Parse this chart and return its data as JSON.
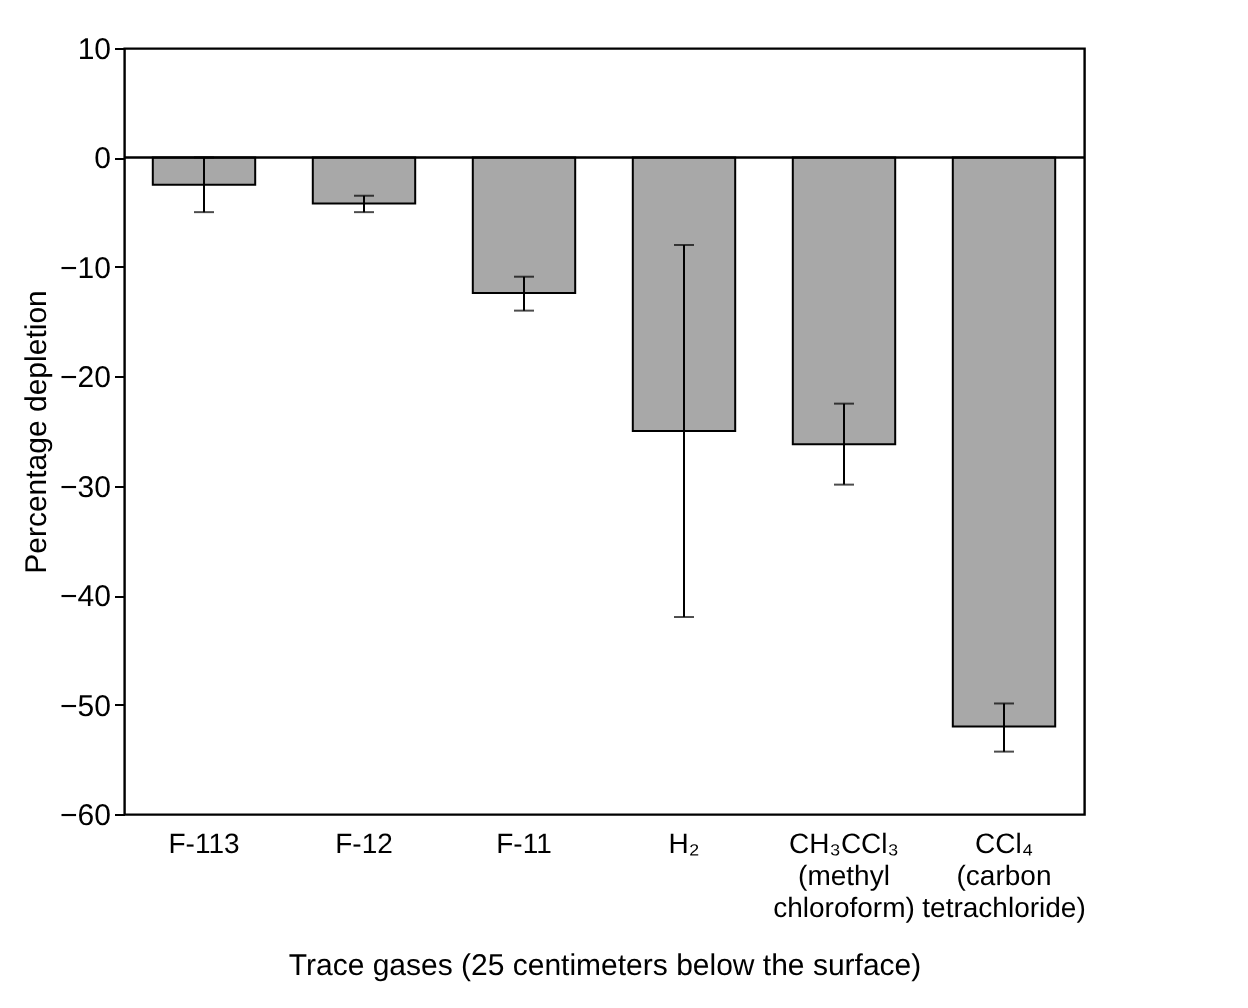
{
  "chart_data": {
    "type": "bar",
    "xlabel": "Trace gases (25 centimeters below the surface)",
    "ylabel": "Percentage depletion",
    "categories": [
      "F-113",
      "F-12",
      "F-11",
      "H₂",
      "CH₃CCl₃\n(methyl\nchloroform)",
      "CCl₄\n(carbon\ntetrachloride)"
    ],
    "values": [
      -2.5,
      -4.2,
      -12.4,
      -25.0,
      -26.2,
      -52.0
    ],
    "errors": [
      [
        -5.0,
        0
      ],
      [
        -5.0,
        -3.5
      ],
      [
        -14.0,
        -10.9
      ],
      [
        -42.0,
        -8.0
      ],
      [
        -29.9,
        -22.5
      ],
      [
        -54.3,
        -49.9
      ]
    ],
    "color": "#a8a8a8",
    "ylim": [
      -60,
      10
    ],
    "yticks": [
      10,
      0,
      -10,
      -20,
      -30,
      -40,
      -50,
      -60
    ],
    "ref_lines": [
      {
        "axis": "y",
        "value": 0
      }
    ],
    "grid": false
  }
}
